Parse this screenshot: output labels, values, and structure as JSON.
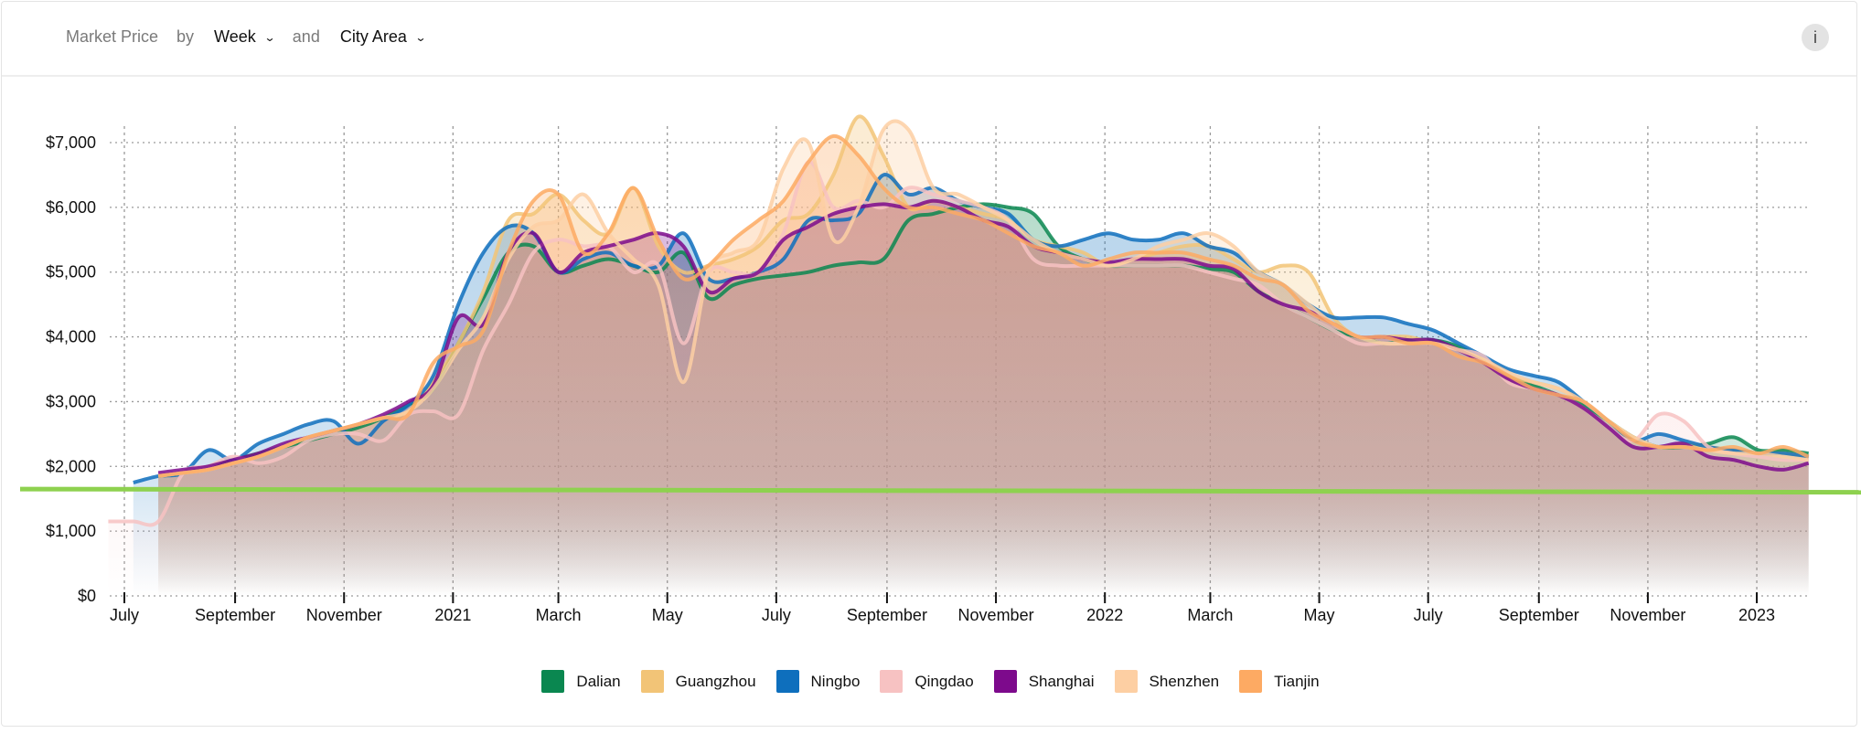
{
  "header": {
    "metric": "Market Price",
    "by": "by",
    "period": "Week",
    "and": "and",
    "group": "City Area",
    "info_icon": "i"
  },
  "chart_data": {
    "type": "area",
    "title": "",
    "xlabel": "",
    "ylabel": "",
    "ylim": [
      0,
      7000
    ],
    "y_ticks": [
      {
        "value": 0,
        "label": "$0"
      },
      {
        "value": 1000,
        "label": "$1,000"
      },
      {
        "value": 2000,
        "label": "$2,000"
      },
      {
        "value": 3000,
        "label": "$3,000"
      },
      {
        "value": 4000,
        "label": "$4,000"
      },
      {
        "value": 5000,
        "label": "$5,000"
      },
      {
        "value": 6000,
        "label": "$6,000"
      },
      {
        "value": 7000,
        "label": "$7,000"
      }
    ],
    "x_ticks": [
      {
        "date": "2020-07-01",
        "label": "July"
      },
      {
        "date": "2020-09-01",
        "label": "September"
      },
      {
        "date": "2020-11-01",
        "label": "November"
      },
      {
        "date": "2021-01-01",
        "label": "2021"
      },
      {
        "date": "2021-03-01",
        "label": "March"
      },
      {
        "date": "2021-05-01",
        "label": "May"
      },
      {
        "date": "2021-07-01",
        "label": "July"
      },
      {
        "date": "2021-09-01",
        "label": "September"
      },
      {
        "date": "2021-11-01",
        "label": "November"
      },
      {
        "date": "2022-01-01",
        "label": "2022"
      },
      {
        "date": "2022-03-01",
        "label": "March"
      },
      {
        "date": "2022-05-01",
        "label": "May"
      },
      {
        "date": "2022-07-01",
        "label": "July"
      },
      {
        "date": "2022-09-01",
        "label": "September"
      },
      {
        "date": "2022-11-01",
        "label": "November"
      },
      {
        "date": "2023-01-01",
        "label": "2023"
      }
    ],
    "grid": true,
    "legend_position": "bottom",
    "x_start": "2020-06-22",
    "x_step_days": 14,
    "reference_line": {
      "start_value": 1650,
      "end_value": 1600,
      "color": "#8ed14f"
    },
    "series": [
      {
        "name": "Dalian",
        "color": "#0a8750",
        "values": [
          null,
          null,
          1850,
          1900,
          2000,
          2100,
          2200,
          2300,
          2400,
          2500,
          2600,
          2750,
          2950,
          3200,
          3900,
          4600,
          5300,
          5400,
          5000,
          5100,
          5200,
          5100,
          5000,
          5300,
          4600,
          4800,
          4900,
          4950,
          5000,
          5100,
          5150,
          5200,
          5800,
          5900,
          6000,
          6050,
          6000,
          5900,
          5400,
          5200,
          5100,
          5100,
          5100,
          5100,
          5050,
          5000,
          4700,
          4500,
          4300,
          4100,
          4000,
          3900,
          3950,
          3950,
          3850,
          3650,
          3400,
          3250,
          3100,
          2950,
          2700,
          2450,
          2300,
          2300,
          2350,
          2450,
          2250,
          2250,
          2200
        ]
      },
      {
        "name": "Guangzhou",
        "color": "#f2c477",
        "values": [
          null,
          null,
          1850,
          1900,
          1950,
          2050,
          2150,
          2300,
          2450,
          2550,
          2650,
          2750,
          2850,
          3300,
          3900,
          4700,
          5800,
          5900,
          6200,
          5800,
          5600,
          6300,
          5400,
          5000,
          5100,
          5200,
          5400,
          5800,
          5900,
          6500,
          7400,
          6800,
          6000,
          6100,
          6000,
          5900,
          5800,
          5500,
          5400,
          5300,
          5100,
          5200,
          5300,
          5400,
          5400,
          5200,
          5000,
          5100,
          5000,
          4300,
          4000,
          4000,
          4000,
          3900,
          3800,
          3650,
          3400,
          3300,
          3200,
          3000,
          2700,
          2450,
          2300,
          2350,
          2300,
          2250,
          2200,
          2200,
          2150
        ]
      },
      {
        "name": "Ningbo",
        "color": "#0e6fbd",
        "values": [
          null,
          1750,
          1850,
          1900,
          2250,
          2100,
          2350,
          2500,
          2650,
          2700,
          2350,
          2700,
          2950,
          3400,
          4500,
          5300,
          5700,
          5600,
          5000,
          5200,
          5300,
          5100,
          5100,
          5600,
          4900,
          4900,
          5000,
          5200,
          5800,
          5800,
          5900,
          6500,
          6200,
          6300,
          6100,
          6000,
          5900,
          5500,
          5400,
          5500,
          5600,
          5500,
          5500,
          5600,
          5400,
          5300,
          5000,
          4800,
          4500,
          4300,
          4300,
          4300,
          4200,
          4100,
          3900,
          3700,
          3500,
          3400,
          3300,
          3000,
          2700,
          2400,
          2500,
          2400,
          2300,
          2250,
          2200,
          2200,
          2150
        ]
      },
      {
        "name": "Qingdao",
        "color": "#f7c2c2",
        "values": [
          1150,
          1150,
          1150,
          1900,
          2000,
          2150,
          2050,
          2150,
          2400,
          2500,
          2500,
          2400,
          2800,
          2850,
          2800,
          3800,
          4500,
          5300,
          5500,
          5400,
          5400,
          5000,
          5100,
          3900,
          5000,
          5000,
          5000,
          5600,
          6700,
          6000,
          6100,
          6000,
          6300,
          6200,
          6100,
          6000,
          5800,
          5200,
          5100,
          5100,
          5100,
          5100,
          5100,
          5100,
          5000,
          4900,
          4800,
          4500,
          4300,
          4100,
          3900,
          3900,
          3900,
          3900,
          3800,
          3700,
          3300,
          3200,
          3100,
          2900,
          2600,
          2400,
          2800,
          2700,
          2300,
          2200,
          2150,
          2100,
          2100
        ]
      },
      {
        "name": "Shanghai",
        "color": "#7d0a8c",
        "values": [
          null,
          null,
          1900,
          1950,
          2000,
          2100,
          2200,
          2350,
          2450,
          2550,
          2650,
          2800,
          3000,
          3250,
          4300,
          4200,
          5300,
          5600,
          5000,
          5300,
          5400,
          5500,
          5600,
          5400,
          4700,
          4900,
          5000,
          5500,
          5700,
          5900,
          6000,
          6050,
          6000,
          6100,
          6000,
          5800,
          5700,
          5400,
          5300,
          5200,
          5150,
          5200,
          5200,
          5200,
          5100,
          5050,
          4700,
          4500,
          4400,
          4200,
          4000,
          4000,
          3950,
          3950,
          3800,
          3600,
          3350,
          3200,
          3100,
          2900,
          2600,
          2300,
          2300,
          2350,
          2150,
          2100,
          2000,
          1950,
          2050
        ]
      },
      {
        "name": "Shenzhen",
        "color": "#fdcfa3",
        "values": [
          null,
          null,
          1850,
          1900,
          1950,
          2050,
          2150,
          2300,
          2450,
          2550,
          2650,
          2750,
          2850,
          3200,
          3800,
          4300,
          5200,
          5700,
          5800,
          6200,
          5600,
          5200,
          4800,
          3300,
          5000,
          5300,
          5500,
          6600,
          7000,
          5500,
          6000,
          7200,
          7200,
          6300,
          6200,
          6000,
          5800,
          5500,
          5300,
          5200,
          5100,
          5200,
          5400,
          5500,
          5600,
          5400,
          5000,
          4800,
          4500,
          4200,
          4000,
          3900,
          3900,
          3900,
          3800,
          3650,
          3450,
          3300,
          3200,
          3000,
          2700,
          2450,
          2300,
          2300,
          2250,
          2200,
          2200,
          2150,
          2100
        ]
      },
      {
        "name": "Tianjin",
        "color": "#fdaa63",
        "values": [
          null,
          null,
          1850,
          1900,
          1950,
          2050,
          2150,
          2300,
          2450,
          2550,
          2650,
          2750,
          2800,
          3600,
          3850,
          4100,
          5300,
          6100,
          6200,
          5300,
          5600,
          6300,
          5500,
          4900,
          5100,
          5500,
          5800,
          6100,
          6700,
          7100,
          6800,
          6300,
          6000,
          6000,
          5900,
          5800,
          5600,
          5400,
          5300,
          5100,
          5200,
          5300,
          5300,
          5300,
          5200,
          5100,
          4900,
          4800,
          4400,
          4200,
          4000,
          4000,
          3900,
          3900,
          3700,
          3600,
          3400,
          3200,
          3100,
          3000,
          2700,
          2400,
          2300,
          2300,
          2250,
          2300,
          2200,
          2300,
          2150
        ]
      }
    ]
  }
}
